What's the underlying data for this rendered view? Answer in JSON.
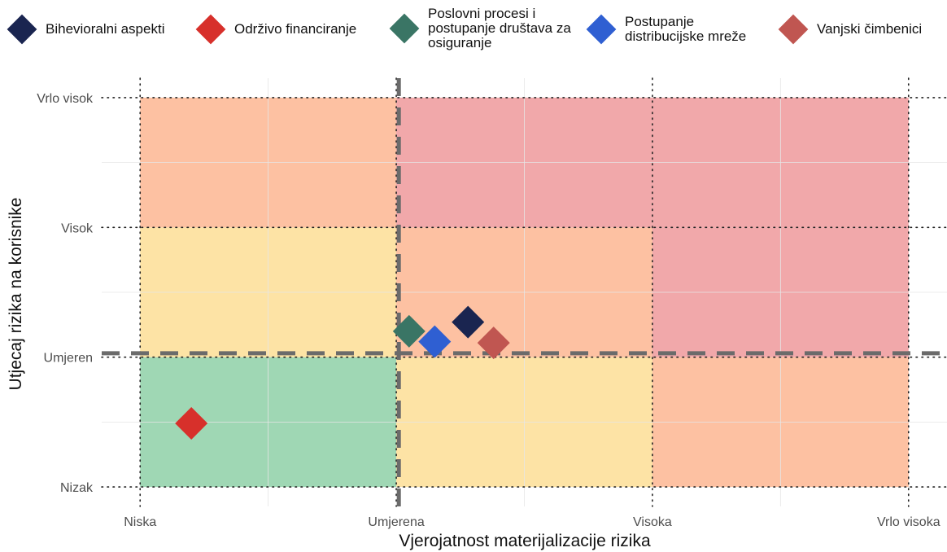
{
  "legend": [
    {
      "label": "Bihevioralni aspekti",
      "color": "#1a2550"
    },
    {
      "label": "Održivo financiranje",
      "color": "#d7302b"
    },
    {
      "label": "Poslovni procesi i postupanje društava za osiguranje",
      "color": "#3a7565"
    },
    {
      "label": "Postupanje distribucijske mreže",
      "color": "#2f5fd2"
    },
    {
      "label": "Vanjski čimbenici",
      "color": "#c05651"
    }
  ],
  "chart_data": {
    "type": "scatter",
    "title": "",
    "xlabel": "Vjerojatnost materijalizacije rizika",
    "ylabel": "Utjecaj rizika na korisnike",
    "x_ticks": [
      {
        "value": 1,
        "label": "Niska"
      },
      {
        "value": 2,
        "label": "Umjerena"
      },
      {
        "value": 3,
        "label": "Visoka"
      },
      {
        "value": 4,
        "label": "Vrlo visoka"
      }
    ],
    "y_ticks": [
      {
        "value": 1,
        "label": "Nizak"
      },
      {
        "value": 2,
        "label": "Umjeren"
      },
      {
        "value": 3,
        "label": "Visok"
      },
      {
        "value": 4,
        "label": "Vrlo visok"
      }
    ],
    "xlim": [
      0.85,
      4.15
    ],
    "ylim": [
      0.85,
      4.15
    ],
    "reference_lines": {
      "x": 2.01,
      "y": 2.03
    },
    "zones": [
      {
        "x": [
          1,
          2
        ],
        "y": [
          1,
          2
        ],
        "color": "#9fd7b4"
      },
      {
        "x": [
          2,
          3
        ],
        "y": [
          1,
          2
        ],
        "color": "#fde3a5"
      },
      {
        "x": [
          3,
          4
        ],
        "y": [
          1,
          2
        ],
        "color": "#fdc1a2"
      },
      {
        "x": [
          1,
          2
        ],
        "y": [
          2,
          3
        ],
        "color": "#fde3a5"
      },
      {
        "x": [
          2,
          3
        ],
        "y": [
          2,
          3
        ],
        "color": "#fdc1a2"
      },
      {
        "x": [
          3,
          4
        ],
        "y": [
          2,
          3
        ],
        "color": "#f1a8aa"
      },
      {
        "x": [
          1,
          2
        ],
        "y": [
          3,
          4
        ],
        "color": "#fdc1a2"
      },
      {
        "x": [
          2,
          3
        ],
        "y": [
          3,
          4
        ],
        "color": "#f1a8aa"
      },
      {
        "x": [
          3,
          4
        ],
        "y": [
          3,
          4
        ],
        "color": "#f1a8aa"
      }
    ],
    "series": [
      {
        "name": "Bihevioralni aspekti",
        "color": "#1a2550",
        "points": [
          {
            "x": 2.28,
            "y": 2.27
          }
        ]
      },
      {
        "name": "Održivo financiranje",
        "color": "#d7302b",
        "points": [
          {
            "x": 1.2,
            "y": 1.49
          }
        ]
      },
      {
        "name": "Poslovni procesi i postupanje društava za osiguranje",
        "color": "#3a7565",
        "points": [
          {
            "x": 2.05,
            "y": 2.2
          }
        ]
      },
      {
        "name": "Postupanje distribucijske mreže",
        "color": "#2f5fd2",
        "points": [
          {
            "x": 2.15,
            "y": 2.12
          }
        ]
      },
      {
        "name": "Vanjski čimbenici",
        "color": "#c05651",
        "points": [
          {
            "x": 2.38,
            "y": 2.11
          }
        ]
      }
    ]
  }
}
